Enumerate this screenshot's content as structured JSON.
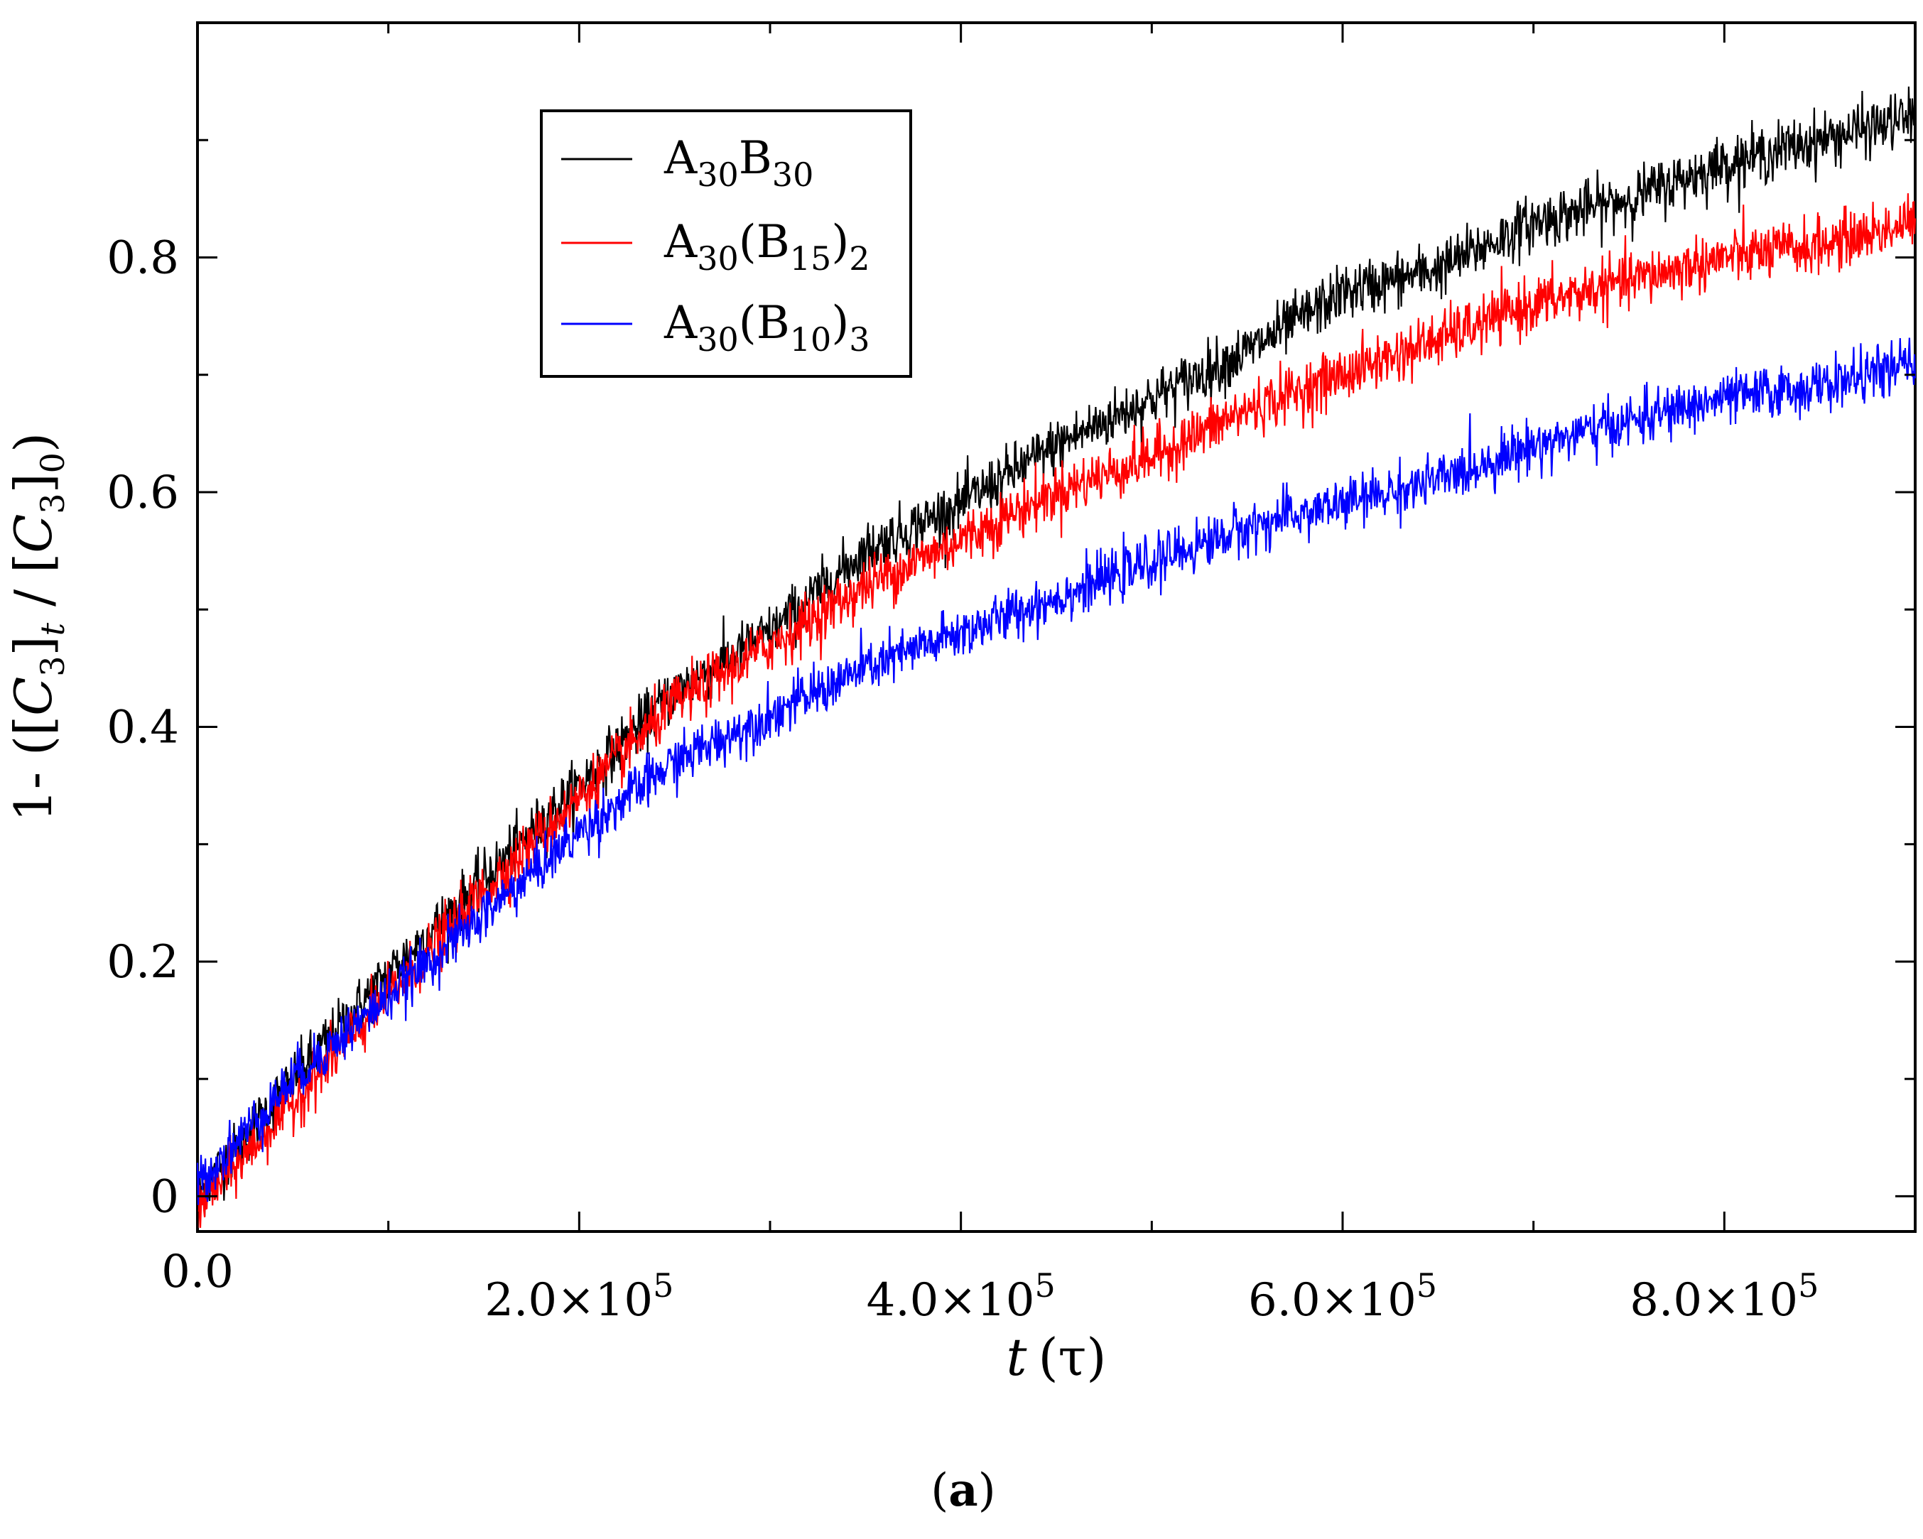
{
  "chart_data": {
    "type": "line",
    "caption": {
      "open": "(",
      "letter": "a",
      "close": ")"
    },
    "xlabel": {
      "var": "t",
      "unit": "(τ)"
    },
    "ylabel": {
      "p1": "1- ([",
      "p2": "C",
      "p3": "3",
      "p4": "]",
      "p5": "t",
      "p6": " / [",
      "p7": "C",
      "p8": "3",
      "p9": "]",
      "p10": "0",
      "p11": ")"
    },
    "xlim": [
      0,
      900000
    ],
    "ylim": [
      -0.03,
      1.0
    ],
    "xticks": [
      {
        "value": 0,
        "label": "0.0"
      },
      {
        "value": 200000,
        "mant": "2.0×10",
        "exp": "5"
      },
      {
        "value": 400000,
        "mant": "4.0×10",
        "exp": "5"
      },
      {
        "value": 600000,
        "mant": "6.0×10",
        "exp": "5"
      },
      {
        "value": 800000,
        "mant": "8.0×10",
        "exp": "5"
      }
    ],
    "xminor": [
      100000,
      300000,
      500000,
      700000
    ],
    "yticks": [
      {
        "value": 0,
        "label": "0"
      },
      {
        "value": 0.2,
        "label": "0.2"
      },
      {
        "value": 0.4,
        "label": "0.4"
      },
      {
        "value": 0.6,
        "label": "0.6"
      },
      {
        "value": 0.8,
        "label": "0.8"
      }
    ],
    "yminor": [
      0.1,
      0.3,
      0.5,
      0.7,
      0.9
    ],
    "series": [
      {
        "name": "A30B30",
        "color": "#000000",
        "legend": {
          "a": "A",
          "s1": "30",
          "b": "B",
          "s2": "30"
        },
        "x": [
          0,
          50000,
          100000,
          150000,
          200000,
          250000,
          300000,
          350000,
          400000,
          450000,
          500000,
          550000,
          600000,
          650000,
          700000,
          750000,
          800000,
          850000,
          900000
        ],
        "y": [
          0,
          0.1,
          0.19,
          0.27,
          0.35,
          0.43,
          0.48,
          0.55,
          0.59,
          0.64,
          0.68,
          0.72,
          0.77,
          0.79,
          0.83,
          0.85,
          0.88,
          0.9,
          0.92
        ],
        "noise": 0.012
      },
      {
        "name": "A30(B15)2",
        "color": "#ff0000",
        "legend": {
          "a": "A",
          "s1": "30",
          "b": "(B",
          "s2": "15",
          "c": ")",
          "s3": "2"
        },
        "x": [
          0,
          50000,
          100000,
          150000,
          200000,
          250000,
          300000,
          350000,
          400000,
          450000,
          500000,
          550000,
          600000,
          650000,
          700000,
          750000,
          800000,
          850000,
          900000
        ],
        "y": [
          -0.01,
          0.08,
          0.17,
          0.26,
          0.34,
          0.42,
          0.47,
          0.52,
          0.56,
          0.6,
          0.63,
          0.67,
          0.7,
          0.73,
          0.76,
          0.78,
          0.8,
          0.81,
          0.83
        ],
        "noise": 0.012
      },
      {
        "name": "A30(B10)3",
        "color": "#0000ff",
        "legend": {
          "a": "A",
          "s1": "30",
          "b": "(B",
          "s2": "10",
          "c": ")",
          "s3": "3"
        },
        "x": [
          0,
          50000,
          100000,
          150000,
          200000,
          250000,
          300000,
          350000,
          400000,
          450000,
          500000,
          550000,
          600000,
          650000,
          700000,
          750000,
          800000,
          850000,
          900000
        ],
        "y": [
          0.01,
          0.1,
          0.17,
          0.24,
          0.31,
          0.37,
          0.41,
          0.45,
          0.48,
          0.51,
          0.54,
          0.57,
          0.59,
          0.61,
          0.64,
          0.66,
          0.68,
          0.69,
          0.71
        ],
        "noise": 0.011
      }
    ],
    "legend_position": "upper-left",
    "grid": false
  }
}
